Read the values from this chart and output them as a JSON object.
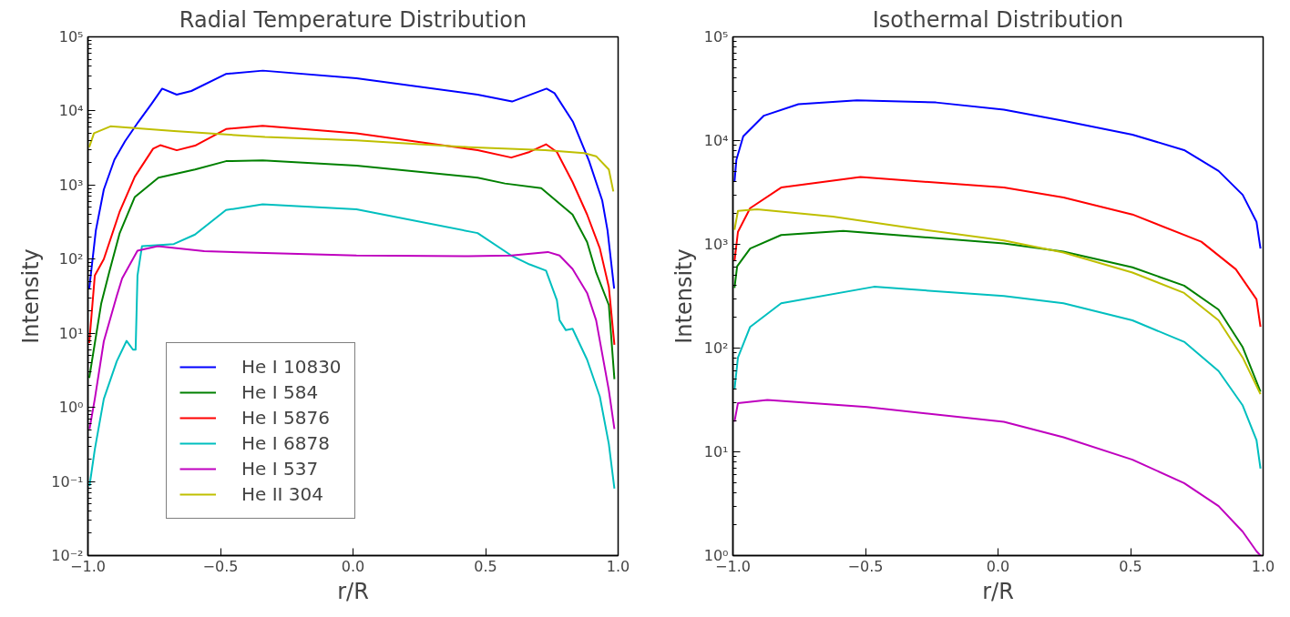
{
  "chart_data": [
    {
      "type": "line",
      "title": "Radial Temperature Distribution",
      "xlabel": "r/R",
      "ylabel": "Intensity",
      "log": "y",
      "grid": false,
      "legend": "bottom left",
      "marker": "none",
      "line_style": "solid",
      "xlim": [
        -1,
        1
      ],
      "ylim": [
        0.01,
        100000
      ],
      "xticks": [
        {
          "value": -1,
          "label": "−1.0"
        },
        {
          "value": -0.5,
          "label": "−0.5"
        },
        {
          "value": 0,
          "label": "0.0"
        },
        {
          "value": 0.5,
          "label": "0.5"
        },
        {
          "value": 1,
          "label": "1.0"
        }
      ],
      "yticks": [
        {
          "value": 0.01,
          "label": "10⁻²"
        },
        {
          "value": 0.1,
          "label": "10⁻¹"
        },
        {
          "value": 1,
          "label": "10⁰"
        },
        {
          "value": 10,
          "label": "10¹"
        },
        {
          "value": 100,
          "label": "10²"
        },
        {
          "value": 1000,
          "label": "10³"
        },
        {
          "value": 10000,
          "label": "10⁴"
        },
        {
          "value": 100000,
          "label": "10⁵"
        }
      ],
      "series": [
        {
          "name": "He I 10830",
          "color": "#0000ff",
          "x": [
            -0.995,
            -0.97,
            -0.94,
            -0.9,
            -0.86,
            -0.81,
            -0.76,
            -0.72,
            -0.665,
            -0.61,
            -0.48,
            -0.34,
            0.013,
            0.47,
            0.6,
            0.73,
            0.76,
            0.83,
            0.89,
            0.94,
            0.96,
            0.985
          ],
          "values": [
            40,
            245,
            870,
            2200,
            3900,
            7100,
            12500,
            20000,
            16600,
            18600,
            31500,
            35000,
            27700,
            16600,
            13400,
            20000,
            17400,
            7100,
            2130,
            620,
            245,
            40
          ]
        },
        {
          "name": "He I 584",
          "color": "#008000",
          "x": [
            -0.995,
            -0.95,
            -0.92,
            -0.88,
            -0.823,
            -0.734,
            -0.596,
            -0.479,
            -0.341,
            0.013,
            0.47,
            0.573,
            0.71,
            0.828,
            0.883,
            0.917,
            0.965,
            0.986
          ],
          "values": [
            2.5,
            25,
            66,
            225,
            690,
            1260,
            1620,
            2100,
            2150,
            1830,
            1260,
            1050,
            910,
            400,
            170,
            66,
            24,
            2.4
          ]
        },
        {
          "name": "He I 5876",
          "color": "#ff0000",
          "x": [
            -0.995,
            -0.974,
            -0.94,
            -0.881,
            -0.823,
            -0.754,
            -0.727,
            -0.665,
            -0.596,
            -0.479,
            -0.341,
            0.013,
            0.47,
            0.597,
            0.666,
            0.728,
            0.769,
            0.828,
            0.883,
            0.931,
            0.965,
            0.986
          ],
          "values": [
            7.4,
            60,
            100,
            430,
            1300,
            3100,
            3450,
            2950,
            3400,
            5700,
            6300,
            5000,
            2950,
            2350,
            2800,
            3550,
            2800,
            1100,
            400,
            140,
            42,
            7
          ]
        },
        {
          "name": "He I 6878",
          "color": "#00bfbf",
          "x": [
            -0.994,
            -0.974,
            -0.94,
            -0.891,
            -0.854,
            -0.83,
            -0.82,
            -0.813,
            -0.796,
            -0.676,
            -0.596,
            -0.479,
            -0.341,
            0.013,
            0.47,
            0.597,
            0.666,
            0.728,
            0.769,
            0.779,
            0.803,
            0.828,
            0.883,
            0.931,
            0.965,
            0.986
          ],
          "values": [
            0.087,
            0.27,
            1.3,
            4.2,
            7.9,
            6,
            6,
            60,
            150,
            160,
            215,
            460,
            550,
            470,
            225,
            112,
            85,
            70,
            28,
            15,
            11,
            11.5,
            4.4,
            1.4,
            0.32,
            0.08
          ]
        },
        {
          "name": "He I 537",
          "color": "#bf00bf",
          "x": [
            -0.994,
            -0.974,
            -0.94,
            -0.891,
            -0.871,
            -0.813,
            -0.737,
            -0.561,
            0.013,
            0.436,
            0.597,
            0.735,
            0.779,
            0.828,
            0.883,
            0.917,
            0.965,
            0.986
          ],
          "values": [
            0.51,
            1.3,
            7.8,
            32,
            55,
            130,
            150,
            128,
            112,
            110,
            112,
            125,
            112,
            74,
            35,
            15,
            1.7,
            0.51
          ]
        },
        {
          "name": "He II 304",
          "color": "#bfbf00",
          "x": [
            -0.995,
            -0.977,
            -0.915,
            -0.675,
            -0.332,
            0.013,
            0.436,
            0.725,
            0.872,
            0.917,
            0.965,
            0.982
          ],
          "values": [
            3250,
            5000,
            6200,
            5350,
            4450,
            4000,
            3250,
            2950,
            2700,
            2450,
            1620,
            820
          ]
        }
      ]
    },
    {
      "type": "line",
      "title": "Isothermal Distribution",
      "xlabel": "r/R",
      "ylabel": "Intensity",
      "log": "y",
      "grid": false,
      "marker": "none",
      "line_style": "solid",
      "xlim": [
        -1,
        1
      ],
      "ylim": [
        1,
        100000
      ],
      "xticks": [
        {
          "value": -1,
          "label": "−1.0"
        },
        {
          "value": -0.5,
          "label": "−0.5"
        },
        {
          "value": 0,
          "label": "0.0"
        },
        {
          "value": 0.5,
          "label": "0.5"
        },
        {
          "value": 1,
          "label": "1.0"
        }
      ],
      "yticks": [
        {
          "value": 1,
          "label": "10⁰"
        },
        {
          "value": 10,
          "label": "10¹"
        },
        {
          "value": 100,
          "label": "10²"
        },
        {
          "value": 1000,
          "label": "10³"
        },
        {
          "value": 10000,
          "label": "10⁴"
        },
        {
          "value": 100000,
          "label": "10⁵"
        }
      ],
      "series": [
        {
          "color": "#0000ff",
          "x": [
            -0.994,
            -0.987,
            -0.961,
            -0.883,
            -0.753,
            -0.532,
            -0.234,
            0.022,
            0.247,
            0.507,
            0.702,
            0.832,
            0.923,
            0.975,
            0.99
          ],
          "values": [
            4000,
            6500,
            11000,
            17400,
            22400,
            24500,
            23300,
            19900,
            15500,
            11400,
            8100,
            5100,
            3000,
            1650,
            910
          ]
        },
        {
          "color": "#008000",
          "x": [
            -0.994,
            -0.984,
            -0.935,
            -0.818,
            -0.584,
            0.022,
            0.247,
            0.507,
            0.702,
            0.832,
            0.923,
            0.99
          ],
          "values": [
            380,
            615,
            910,
            1230,
            1350,
            1020,
            850,
            600,
            400,
            235,
            102,
            38
          ]
        },
        {
          "color": "#ff0000",
          "x": [
            -0.994,
            -0.981,
            -0.935,
            -0.818,
            -0.519,
            0.022,
            0.247,
            0.507,
            0.767,
            0.897,
            0.975,
            0.99
          ],
          "values": [
            690,
            1320,
            2230,
            3530,
            4450,
            3530,
            2830,
            1940,
            1060,
            575,
            295,
            160
          ]
        },
        {
          "color": "#00bfbf",
          "x": [
            -0.994,
            -0.981,
            -0.935,
            -0.818,
            -0.468,
            0.022,
            0.247,
            0.507,
            0.702,
            0.832,
            0.923,
            0.975,
            0.99
          ],
          "values": [
            40,
            81,
            160,
            270,
            390,
            318,
            270,
            185,
            115,
            60,
            28,
            13,
            6.9
          ]
        },
        {
          "color": "#bf00bf",
          "x": [
            -0.994,
            -0.981,
            -0.87,
            -0.494,
            0.022,
            0.247,
            0.507,
            0.702,
            0.832,
            0.923,
            0.975,
            0.99
          ],
          "values": [
            19.5,
            29.5,
            31.6,
            27,
            19.5,
            13.8,
            8.4,
            5,
            3,
            1.7,
            1.1,
            1
          ]
        },
        {
          "color": "#bfbf00",
          "x": [
            -0.994,
            -0.981,
            -0.909,
            -0.623,
            -0.364,
            0.022,
            0.247,
            0.507,
            0.702,
            0.832,
            0.923,
            0.99
          ],
          "values": [
            1380,
            2100,
            2180,
            1850,
            1480,
            1090,
            835,
            535,
            340,
            185,
            81,
            36
          ]
        }
      ]
    }
  ]
}
